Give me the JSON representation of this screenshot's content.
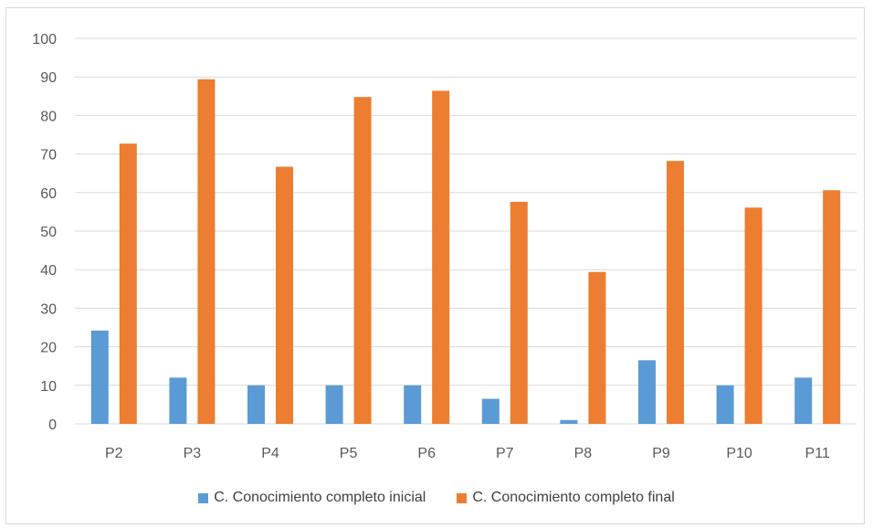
{
  "chart_data": {
    "type": "bar",
    "categories": [
      "P2",
      "P3",
      "P4",
      "P5",
      "P6",
      "P7",
      "P8",
      "P9",
      "P10",
      "P11"
    ],
    "series": [
      {
        "name": "C. Conocimiento completo inicial",
        "color": "#5b9bd5",
        "values": [
          24.2,
          12,
          10,
          10,
          10,
          6.5,
          1,
          16.5,
          10,
          12
        ]
      },
      {
        "name": "C. Conocimiento completo final",
        "color": "#ed7d31",
        "values": [
          72.7,
          89.4,
          66.7,
          84.8,
          86.4,
          57.6,
          39.4,
          68.2,
          56.1,
          60.6
        ]
      }
    ],
    "ylim": [
      0,
      100
    ],
    "yticks": [
      0,
      10,
      20,
      30,
      40,
      50,
      60,
      70,
      80,
      90,
      100
    ],
    "grid": true,
    "legend_position": "bottom",
    "title": "",
    "xlabel": "",
    "ylabel": ""
  }
}
